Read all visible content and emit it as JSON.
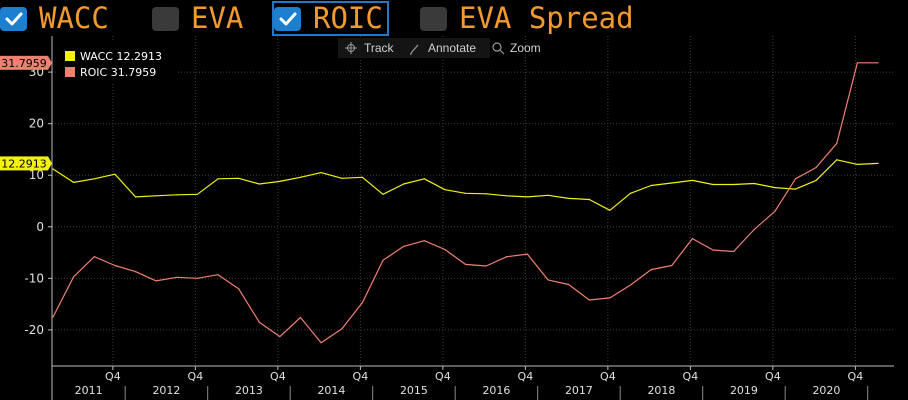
{
  "toggles": [
    {
      "label": "WACC",
      "checked": true,
      "selected": false
    },
    {
      "label": "EVA",
      "checked": false,
      "selected": false
    },
    {
      "label": "ROIC",
      "checked": true,
      "selected": true
    },
    {
      "label": "EVA Spread",
      "checked": false,
      "selected": false
    }
  ],
  "toolbar": {
    "track_label": "Track",
    "annotate_label": "Annotate",
    "zoom_label": "Zoom"
  },
  "colors": {
    "background": "#000000",
    "accent": "#f39a2e",
    "checkbox_on": "#1c7fd0",
    "wacc": "#f2f20e",
    "roic": "#f08070"
  },
  "chart_data": {
    "type": "line",
    "ylim": [
      -27,
      37
    ],
    "yticks": [
      -20,
      -10,
      0,
      10,
      20,
      30
    ],
    "grid": true,
    "legend_position": "top-left",
    "x_period_labels": [
      "Q4",
      "Q4",
      "Q4",
      "Q4",
      "Q4",
      "Q4",
      "Q4",
      "Q4",
      "Q4",
      "Q4"
    ],
    "x_year_labels": [
      "2011",
      "2012",
      "2013",
      "2014",
      "2015",
      "2016",
      "2017",
      "2018",
      "2019",
      "2020"
    ],
    "series": [
      {
        "name": "WACC",
        "last_label": "12.2913",
        "color": "#f2f20e",
        "values": [
          11.2,
          8.6,
          9.3,
          10.2,
          5.8,
          6.0,
          6.2,
          6.3,
          9.3,
          9.4,
          8.3,
          8.8,
          9.6,
          10.5,
          9.4,
          9.6,
          6.3,
          8.3,
          9.3,
          7.2,
          6.5,
          6.4,
          6.0,
          5.8,
          6.1,
          5.5,
          5.3,
          3.2,
          6.5,
          8.0,
          8.5,
          9.0,
          8.2,
          8.2,
          8.4,
          7.6,
          7.3,
          9.0,
          13.0,
          12.1,
          12.2913
        ]
      },
      {
        "name": "ROIC",
        "last_label": "31.7959",
        "color": "#f08070",
        "values": [
          -17.5,
          -9.7,
          -5.8,
          -7.5,
          -8.7,
          -10.5,
          -9.8,
          -10.0,
          -9.3,
          -12.0,
          -18.5,
          -21.3,
          -17.6,
          -22.5,
          -19.8,
          -14.7,
          -6.5,
          -3.8,
          -2.7,
          -4.4,
          -7.3,
          -7.6,
          -5.8,
          -5.3,
          -10.3,
          -11.2,
          -14.2,
          -13.8,
          -11.3,
          -8.3,
          -7.5,
          -2.3,
          -4.5,
          -4.8,
          -0.5,
          3.0,
          9.3,
          11.5,
          16.2,
          31.7959,
          31.7959
        ]
      }
    ]
  }
}
